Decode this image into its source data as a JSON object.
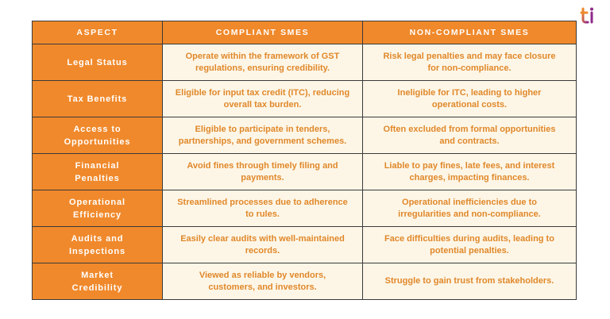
{
  "header": {
    "columns": [
      "ASPECT",
      "COMPLIANT SMES",
      "NON-COMPLIANT SMES"
    ]
  },
  "table": {
    "rows": [
      [
        "Legal Status",
        "Operate within the framework of GST regulations, ensuring credibility.",
        "Risk legal penalties and may face closure for non-compliance."
      ],
      [
        "Tax Benefits",
        "Eligible for input tax credit (ITC), reducing overall tax burden.",
        "Ineligible for ITC, leading to higher operational costs."
      ],
      [
        "Access to Opportunities",
        "Eligible to participate in tenders, partnerships, and government schemes.",
        "Often excluded from formal opportunities and contracts."
      ],
      [
        "Financial Penalties",
        "Avoid fines through timely filing and payments.",
        "Liable to pay fines, late fees, and interest charges, impacting finances."
      ],
      [
        "Operational Efficiency",
        "Streamlined processes due to adherence to rules.",
        "Operational inefficiencies due to irregularities and non-compliance."
      ],
      [
        "Audits and Inspections",
        "Easily clear audits with well-maintained records.",
        "Face difficulties during audits, leading to potential penalties."
      ],
      [
        "Market Credibility",
        "Viewed as reliable by vendors, customers, and investors.",
        "Struggle to gain trust from stakeholders."
      ]
    ]
  }
}
